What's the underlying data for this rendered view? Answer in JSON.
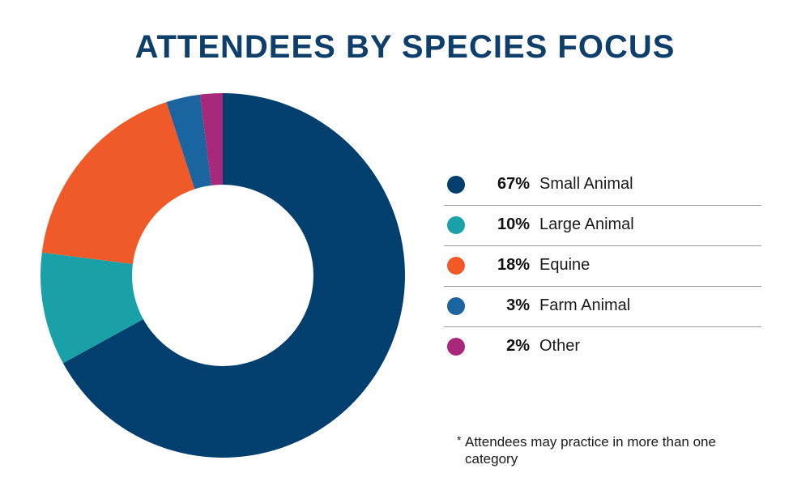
{
  "title": "ATTENDEES BY SPECIES FOCUS",
  "chart_data": {
    "type": "pie",
    "variant": "donut",
    "title": "ATTENDEES BY SPECIES FOCUS",
    "legend_position": "right",
    "series": [
      {
        "name": "Small Animal",
        "value": 67,
        "label": "67%",
        "color": "#003f6e"
      },
      {
        "name": "Large Animal",
        "value": 10,
        "label": "10%",
        "color": "#1aa1a8"
      },
      {
        "name": "Equine",
        "value": 18,
        "label": "18%",
        "color": "#ef5a28"
      },
      {
        "name": "Farm Animal",
        "value": 3,
        "label": "3%",
        "color": "#1a64a0"
      },
      {
        "name": "Other",
        "value": 2,
        "label": "2%",
        "color": "#a8297c"
      }
    ]
  },
  "footnote": {
    "marker": "*",
    "text": "Attendees may practice in more than one category"
  }
}
